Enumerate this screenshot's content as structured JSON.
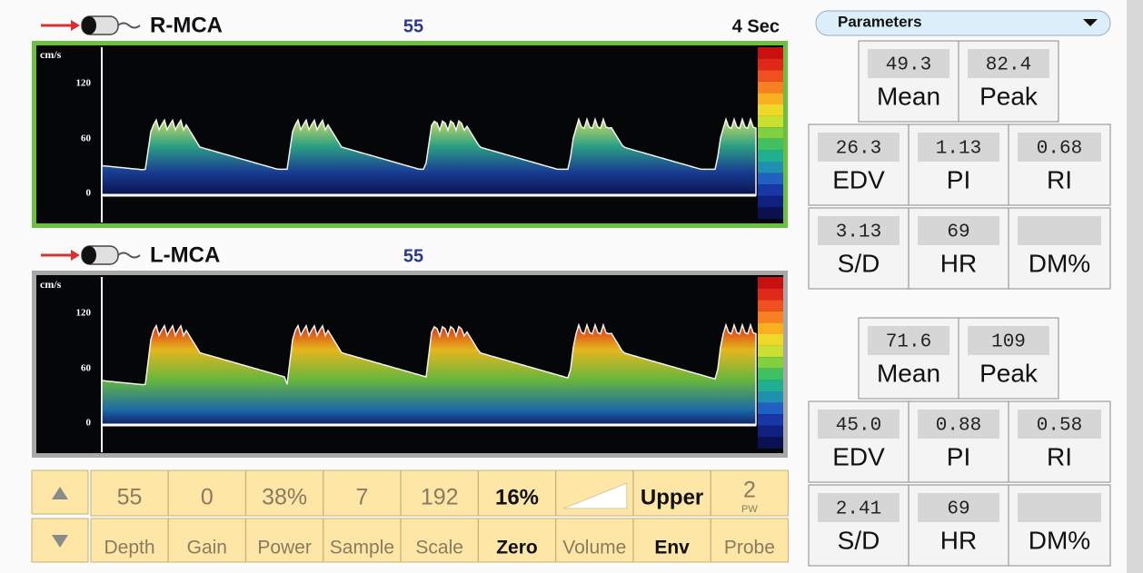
{
  "channels": [
    {
      "name": "R-MCA",
      "depth": "55",
      "sweep": "4 Sec",
      "axis": {
        "unit": "cm/s",
        "ticks": [
          "120",
          "60",
          "0"
        ]
      }
    },
    {
      "name": "L-MCA",
      "depth": "55",
      "axis": {
        "unit": "cm/s",
        "ticks": [
          "120",
          "60",
          "0"
        ]
      }
    }
  ],
  "controls": {
    "cells": [
      {
        "value": "55",
        "label": "Depth"
      },
      {
        "value": "0",
        "label": "Gain"
      },
      {
        "value": "38%",
        "label": "Power"
      },
      {
        "value": "7",
        "label": "Sample"
      },
      {
        "value": "192",
        "label": "Scale"
      },
      {
        "value": "16%",
        "label": "Zero"
      },
      {
        "label": "Volume"
      },
      {
        "value": "Upper",
        "label": "Env"
      },
      {
        "value": "2",
        "sub": "PW",
        "label": "Probe"
      }
    ]
  },
  "parameters": {
    "title": "Parameters",
    "panels": [
      {
        "cells": [
          {
            "value": "49.3",
            "label": "Mean"
          },
          {
            "value": "82.4",
            "label": "Peak"
          },
          {
            "value": "26.3",
            "label": "EDV"
          },
          {
            "value": "1.13",
            "label": "PI"
          },
          {
            "value": "0.68",
            "label": "RI"
          },
          {
            "value": "3.13",
            "label": "S/D"
          },
          {
            "value": "69",
            "label": "HR"
          },
          {
            "label": "DM%"
          }
        ]
      },
      {
        "cells": [
          {
            "value": "71.6",
            "label": "Mean"
          },
          {
            "value": "109",
            "label": "Peak"
          },
          {
            "value": "45.0",
            "label": "EDV"
          },
          {
            "value": "0.88",
            "label": "PI"
          },
          {
            "value": "0.58",
            "label": "RI"
          },
          {
            "value": "2.41",
            "label": "S/D"
          },
          {
            "value": "69",
            "label": "HR"
          },
          {
            "label": "DM%"
          }
        ]
      }
    ]
  }
}
